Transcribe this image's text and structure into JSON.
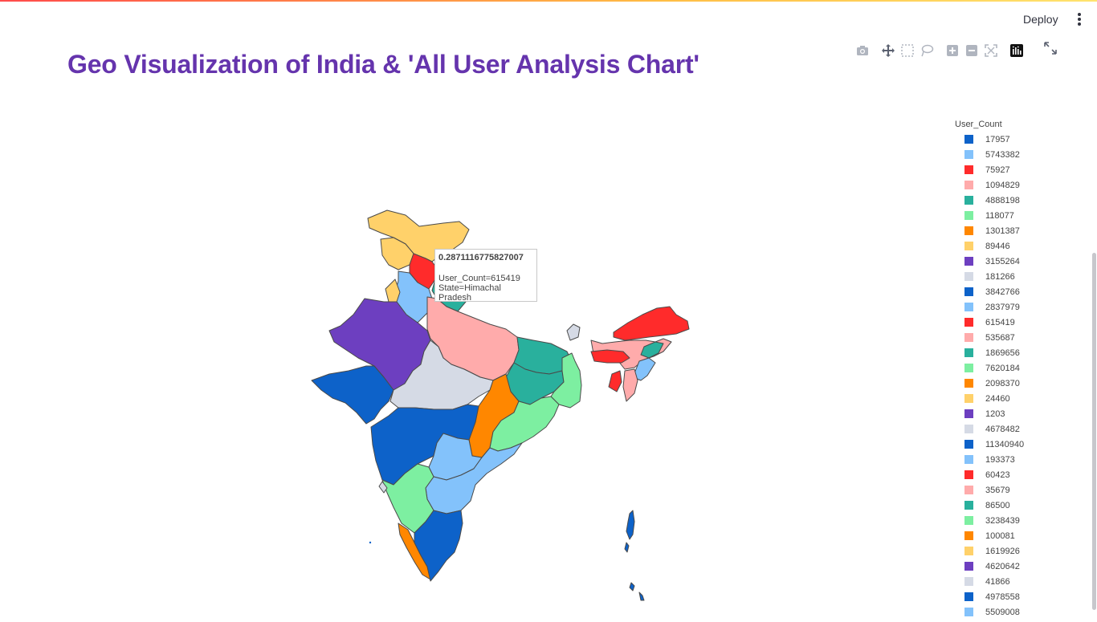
{
  "header": {
    "deploy_label": "Deploy",
    "menu_icon": "kebab-icon"
  },
  "page": {
    "title": "Geo Visualization of India & 'All User Analysis Chart'"
  },
  "modebar": {
    "icons": [
      "camera-icon",
      "pan-icon",
      "box-select-icon",
      "lasso-select-icon",
      "zoom-in-icon",
      "zoom-out-icon",
      "reset-icon",
      "plotly-logo-icon"
    ],
    "fullscreen_icon": "fullscreen-icon"
  },
  "tooltip": {
    "value": "0.2871116775827007",
    "line1": "User_Count=615419",
    "line2": "State=Himachal Pradesh"
  },
  "legend": {
    "title": "User_Count",
    "items": [
      {
        "label": "17957",
        "color": "#0d62c9"
      },
      {
        "label": "5743382",
        "color": "#83c2fb"
      },
      {
        "label": "75927",
        "color": "#ff2b2b"
      },
      {
        "label": "1094829",
        "color": "#ffabab"
      },
      {
        "label": "4888198",
        "color": "#29b09d"
      },
      {
        "label": "118077",
        "color": "#7defa1"
      },
      {
        "label": "1301387",
        "color": "#ff8700"
      },
      {
        "label": "89446",
        "color": "#ffd16a"
      },
      {
        "label": "3155264",
        "color": "#6d3fc0"
      },
      {
        "label": "181266",
        "color": "#d5dae5"
      },
      {
        "label": "3842766",
        "color": "#0d62c9"
      },
      {
        "label": "2837979",
        "color": "#83c2fb"
      },
      {
        "label": "615419",
        "color": "#ff2b2b"
      },
      {
        "label": "535687",
        "color": "#ffabab"
      },
      {
        "label": "1869656",
        "color": "#29b09d"
      },
      {
        "label": "7620184",
        "color": "#7defa1"
      },
      {
        "label": "2098370",
        "color": "#ff8700"
      },
      {
        "label": "24460",
        "color": "#ffd16a"
      },
      {
        "label": "1203",
        "color": "#6d3fc0"
      },
      {
        "label": "4678482",
        "color": "#d5dae5"
      },
      {
        "label": "11340940",
        "color": "#0d62c9"
      },
      {
        "label": "193373",
        "color": "#83c2fb"
      },
      {
        "label": "60423",
        "color": "#ff2b2b"
      },
      {
        "label": "35679",
        "color": "#ffabab"
      },
      {
        "label": "86500",
        "color": "#29b09d"
      },
      {
        "label": "3238439",
        "color": "#7defa1"
      },
      {
        "label": "100081",
        "color": "#ff8700"
      },
      {
        "label": "1619926",
        "color": "#ffd16a"
      },
      {
        "label": "4620642",
        "color": "#6d3fc0"
      },
      {
        "label": "41866",
        "color": "#d5dae5"
      },
      {
        "label": "4978558",
        "color": "#0d62c9"
      },
      {
        "label": "5509008",
        "color": "#83c2fb"
      }
    ]
  },
  "map_regions": [
    {
      "name": "jammu-kashmir",
      "color": "#ffd16a"
    },
    {
      "name": "punjab",
      "color": "#ffd16a"
    },
    {
      "name": "himachal-pradesh",
      "color": "#ff2b2b"
    },
    {
      "name": "haryana",
      "color": "#83c2fb"
    },
    {
      "name": "rajasthan",
      "color": "#6d3fc0"
    },
    {
      "name": "gujarat",
      "color": "#0d62c9"
    },
    {
      "name": "uttar-pradesh",
      "color": "#ffabab"
    },
    {
      "name": "madhya-pradesh",
      "color": "#d5dae5"
    },
    {
      "name": "bihar",
      "color": "#29b09d"
    },
    {
      "name": "jharkhand",
      "color": "#29b09d"
    },
    {
      "name": "west-bengal",
      "color": "#7defa1"
    },
    {
      "name": "chhattisgarh",
      "color": "#ff8700"
    },
    {
      "name": "odisha",
      "color": "#7defa1"
    },
    {
      "name": "maharashtra",
      "color": "#0d62c9"
    },
    {
      "name": "telangana",
      "color": "#83c2fb"
    },
    {
      "name": "andhra-pradesh",
      "color": "#83c2fb"
    },
    {
      "name": "karnataka",
      "color": "#7defa1"
    },
    {
      "name": "kerala",
      "color": "#ff8700"
    },
    {
      "name": "tamil-nadu",
      "color": "#0d62c9"
    },
    {
      "name": "northeast",
      "color": "#ff2b2b"
    },
    {
      "name": "assam",
      "color": "#ffabab"
    },
    {
      "name": "meghalaya",
      "color": "#ff2b2b"
    },
    {
      "name": "sikkim",
      "color": "#d5dae5"
    },
    {
      "name": "andaman-nicobar",
      "color": "#0d62c9"
    }
  ]
}
